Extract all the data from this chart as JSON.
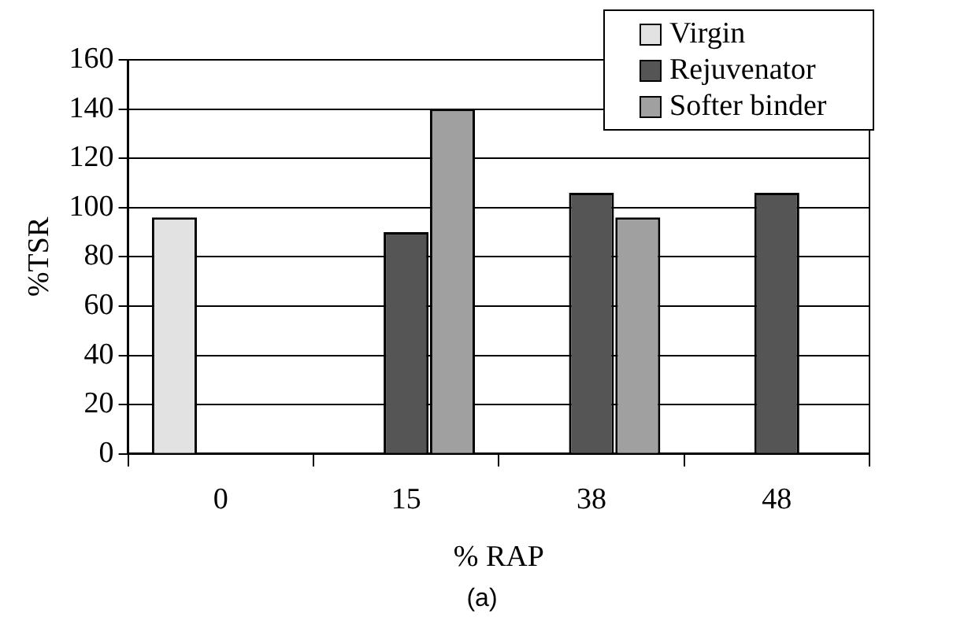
{
  "chart_data": {
    "type": "bar",
    "xlabel": "% RAP",
    "ylabel": "%TSR",
    "categories": [
      "0",
      "15",
      "38",
      "48"
    ],
    "series": [
      {
        "name": "Virgin",
        "color": "#e2e2e2",
        "values": [
          96,
          null,
          null,
          null
        ]
      },
      {
        "name": "Rejuvenator",
        "color": "#555555",
        "values": [
          null,
          90,
          106,
          106
        ]
      },
      {
        "name": "Softer binder",
        "color": "#a0a0a0",
        "values": [
          null,
          140,
          96,
          null
        ]
      }
    ],
    "ylim": [
      0,
      160
    ],
    "yticks": [
      0,
      20,
      40,
      60,
      80,
      100,
      120,
      140,
      160
    ],
    "grid": "y",
    "legend": "top right",
    "annotations": [
      "(a)"
    ]
  }
}
